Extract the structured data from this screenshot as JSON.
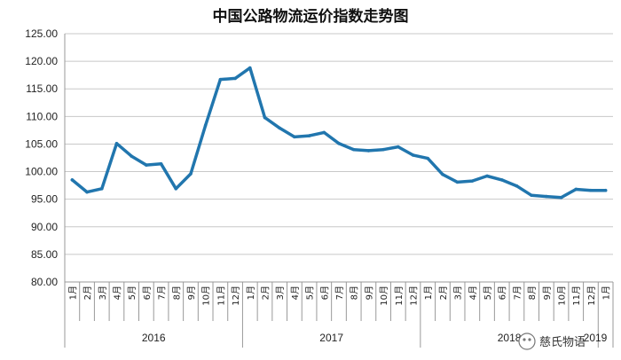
{
  "chart_data": {
    "type": "line",
    "title": "中国公路物流运价指数走势图",
    "ylim": [
      80,
      125
    ],
    "yticks": [
      "80.00",
      "85.00",
      "90.00",
      "95.00",
      "100.00",
      "105.00",
      "110.00",
      "115.00",
      "120.00",
      "125.00"
    ],
    "month_unit": "月",
    "years": [
      "2016",
      "2017",
      "2018",
      "2019"
    ],
    "categories": [
      "2016-1",
      "2016-2",
      "2016-3",
      "2016-4",
      "2016-5",
      "2016-6",
      "2016-7",
      "2016-8",
      "2016-9",
      "2016-10",
      "2016-11",
      "2016-12",
      "2017-1",
      "2017-2",
      "2017-3",
      "2017-4",
      "2017-5",
      "2017-6",
      "2017-7",
      "2017-8",
      "2017-9",
      "2017-10",
      "2017-11",
      "2017-12",
      "2018-1",
      "2018-2",
      "2018-3",
      "2018-4",
      "2018-5",
      "2018-6",
      "2018-7",
      "2018-8",
      "2018-9",
      "2018-10",
      "2018-11",
      "2018-12",
      "2019-1"
    ],
    "month_labels": [
      "1",
      "2",
      "3",
      "4",
      "5",
      "6",
      "7",
      "8",
      "9",
      "10",
      "11",
      "12",
      "1",
      "2",
      "3",
      "4",
      "5",
      "6",
      "7",
      "8",
      "9",
      "10",
      "11",
      "12",
      "1",
      "2",
      "3",
      "4",
      "5",
      "6",
      "7",
      "8",
      "9",
      "10",
      "11",
      "12",
      "1"
    ],
    "values": [
      98.5,
      96.3,
      96.9,
      105.1,
      102.8,
      101.2,
      101.4,
      96.9,
      99.6,
      108.4,
      116.7,
      116.9,
      118.8,
      109.8,
      107.9,
      106.3,
      106.5,
      107.1,
      105.1,
      104.0,
      103.8,
      104.0,
      104.5,
      103.0,
      102.4,
      99.5,
      98.1,
      98.3,
      99.2,
      98.5,
      97.4,
      95.7,
      95.5,
      95.3,
      96.8,
      96.6,
      96.6
    ],
    "line_color": "#2176ae",
    "grid": true
  },
  "watermark": {
    "text": "慈氏物语"
  }
}
